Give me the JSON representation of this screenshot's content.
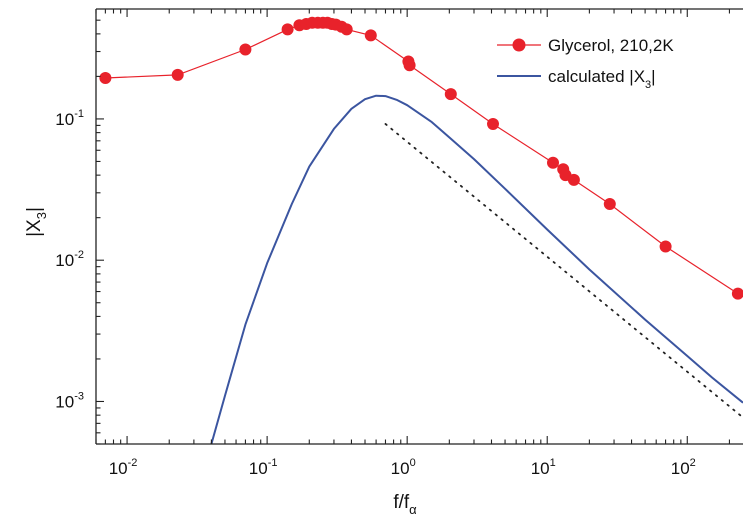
{
  "chart_data": {
    "type": "line",
    "title": "",
    "xlabel": {
      "main": "f/f",
      "sub": "α"
    },
    "ylabel": {
      "pre": "|X",
      "sub": "3",
      "post": "|"
    },
    "x_scale": "log",
    "y_scale": "log",
    "xlim": [
      0.006,
      250
    ],
    "ylim": [
      0.0005,
      0.6
    ],
    "x_ticks": [
      {
        "value": 0.01,
        "base": "10",
        "exp": "-2"
      },
      {
        "value": 0.1,
        "base": "10",
        "exp": "-1"
      },
      {
        "value": 1,
        "base": "10",
        "exp": "0"
      },
      {
        "value": 10,
        "base": "10",
        "exp": "1"
      },
      {
        "value": 100,
        "base": "10",
        "exp": "2"
      }
    ],
    "y_ticks": [
      {
        "value": 0.001,
        "base": "10",
        "exp": "-3"
      },
      {
        "value": 0.01,
        "base": "10",
        "exp": "-2"
      },
      {
        "value": 0.1,
        "base": "10",
        "exp": "-1"
      }
    ],
    "legend_position": "top-right",
    "series": [
      {
        "name": "Glycerol, 210,2K",
        "style": "line-marker",
        "color": "#e8222b",
        "points": [
          [
            0.007,
            0.195
          ],
          [
            0.023,
            0.205
          ],
          [
            0.07,
            0.31
          ],
          [
            0.14,
            0.43
          ],
          [
            0.17,
            0.46
          ],
          [
            0.19,
            0.47
          ],
          [
            0.21,
            0.48
          ],
          [
            0.23,
            0.48
          ],
          [
            0.25,
            0.48
          ],
          [
            0.27,
            0.48
          ],
          [
            0.29,
            0.47
          ],
          [
            0.31,
            0.465
          ],
          [
            0.34,
            0.45
          ],
          [
            0.37,
            0.43
          ],
          [
            0.55,
            0.39
          ],
          [
            1.02,
            0.255
          ],
          [
            1.04,
            0.24
          ],
          [
            2.05,
            0.15
          ],
          [
            4.1,
            0.092
          ],
          [
            11,
            0.049
          ],
          [
            13,
            0.044
          ],
          [
            13.5,
            0.04
          ],
          [
            15.5,
            0.037
          ],
          [
            28,
            0.025
          ],
          [
            70,
            0.0125
          ],
          [
            230,
            0.0058
          ]
        ]
      },
      {
        "name": "calculated |X",
        "name_sub": "3",
        "name_post": "|",
        "style": "line",
        "color": "#3b55a0",
        "points": [
          [
            0.04,
            0.0005
          ],
          [
            0.05,
            0.0011
          ],
          [
            0.07,
            0.0035
          ],
          [
            0.1,
            0.0095
          ],
          [
            0.15,
            0.025
          ],
          [
            0.2,
            0.046
          ],
          [
            0.3,
            0.085
          ],
          [
            0.4,
            0.118
          ],
          [
            0.5,
            0.138
          ],
          [
            0.6,
            0.146
          ],
          [
            0.7,
            0.145
          ],
          [
            0.85,
            0.136
          ],
          [
            1,
            0.125
          ],
          [
            1.5,
            0.095
          ],
          [
            2,
            0.074
          ],
          [
            3,
            0.052
          ],
          [
            5,
            0.032
          ],
          [
            10,
            0.0165
          ],
          [
            20,
            0.0086
          ],
          [
            50,
            0.0038
          ],
          [
            100,
            0.0021
          ],
          [
            150,
            0.00148
          ],
          [
            250,
            0.00098
          ]
        ]
      },
      {
        "name": "",
        "style": "dotted",
        "color": "#222222",
        "points": [
          [
            0.7,
            0.092
          ],
          [
            250,
            0.00077
          ]
        ]
      }
    ]
  }
}
